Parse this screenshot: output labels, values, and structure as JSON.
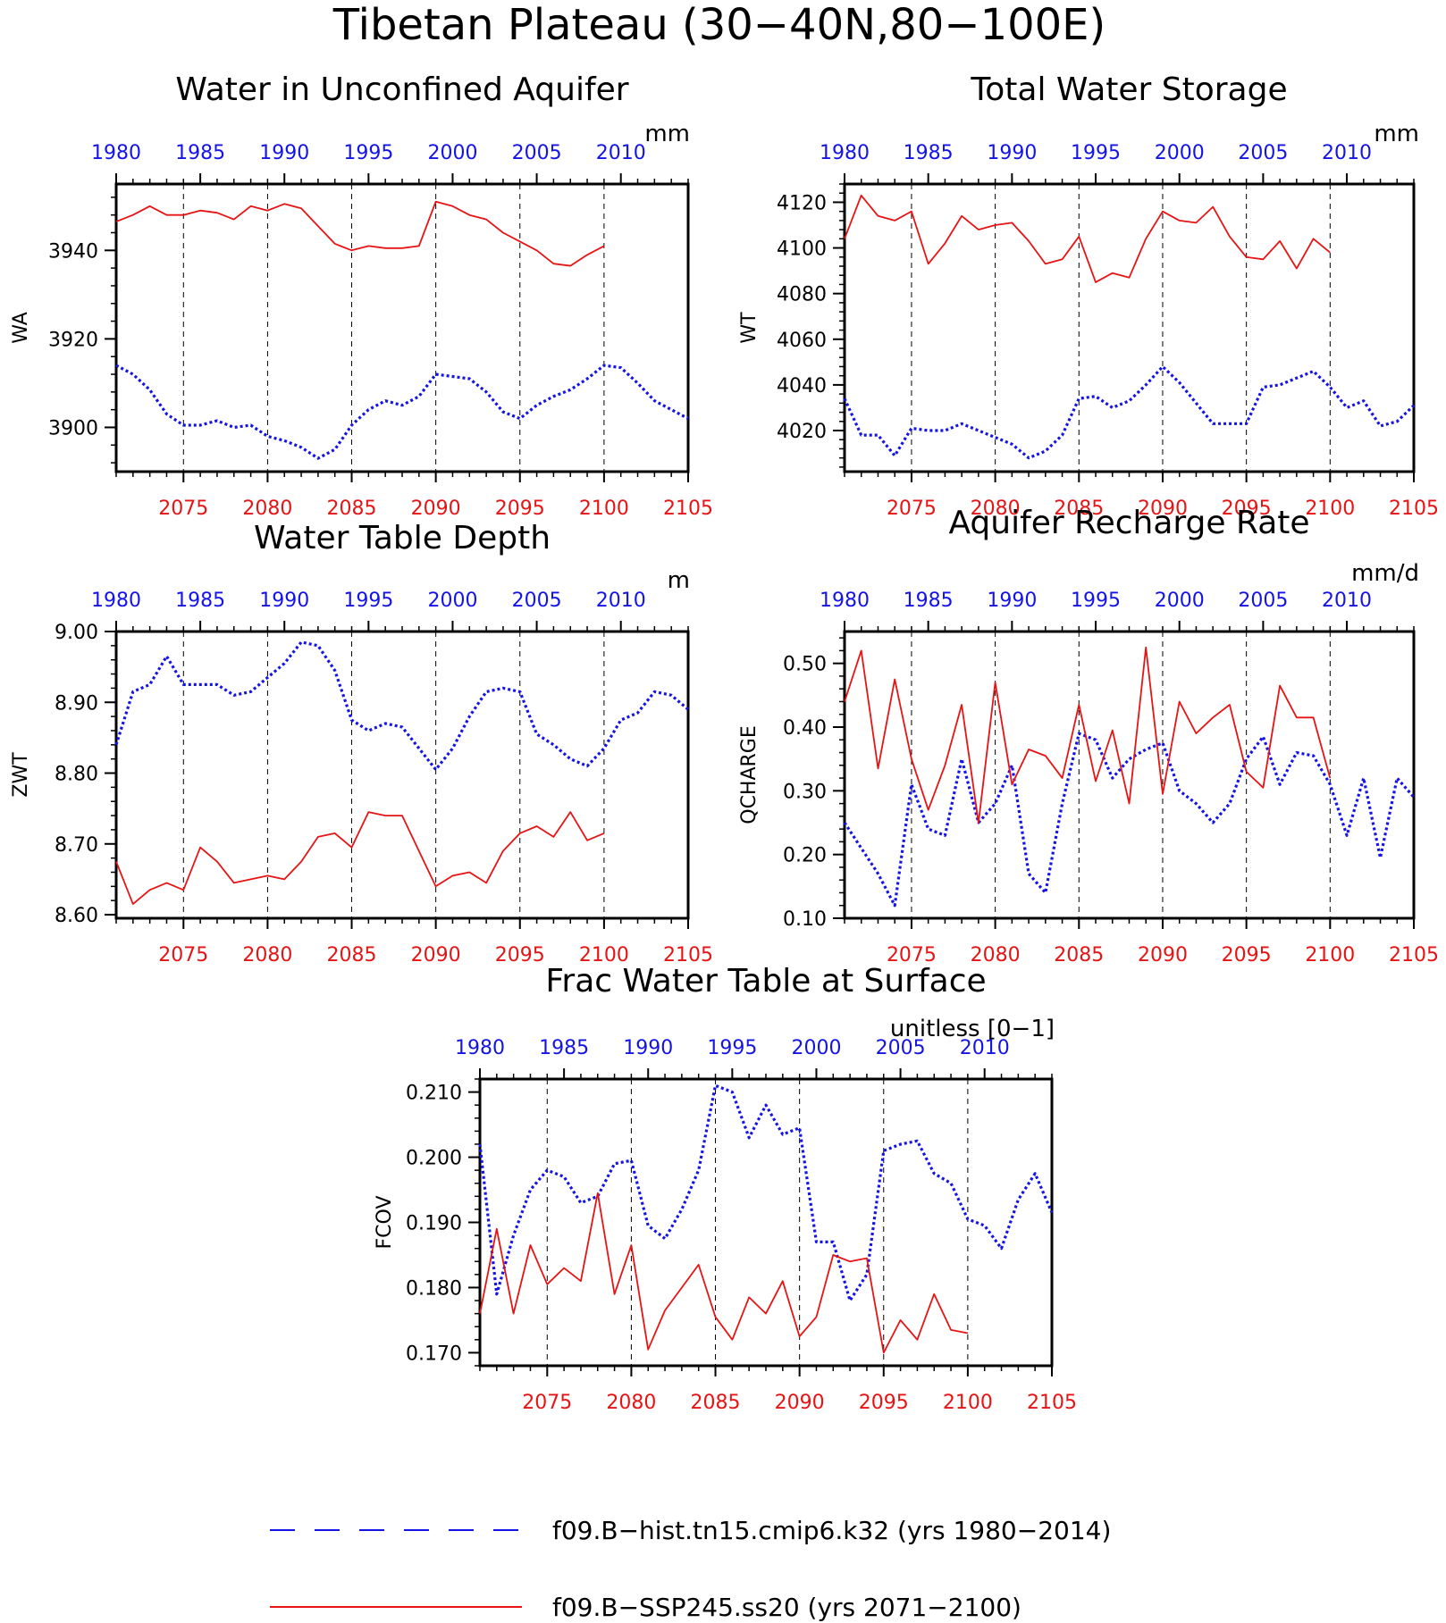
{
  "page_title": "Tibetan Plateau (30−40N,80−100E)",
  "colors": {
    "hist": "#1414e6",
    "ssp": "#e61414",
    "axis": "#000000"
  },
  "axes": {
    "top_ticks": [
      1980,
      1985,
      1990,
      1995,
      2000,
      2005,
      2010
    ],
    "bottom_ticks": [
      2075,
      2080,
      2085,
      2090,
      2095,
      2100,
      2105
    ],
    "top_range": [
      1980,
      2014
    ],
    "bottom_range": [
      2071,
      2105
    ]
  },
  "legend": [
    {
      "label": "f09.B−hist.tn15.cmip6.k32 (yrs 1980−2014)",
      "style": "dashed",
      "color": "#1414e6"
    },
    {
      "label": "f09.B−SSP245.ss20 (yrs 2071−2100)",
      "style": "solid",
      "color": "#e61414"
    }
  ],
  "chart_data": [
    {
      "type": "line",
      "title": "Water in Unconfined Aquifer",
      "ylabel": "WA",
      "units": "mm",
      "ylim": [
        3890,
        3955
      ],
      "yticks": [
        "3900",
        "3920",
        "3940"
      ],
      "ytick_values": [
        3900,
        3920,
        3940
      ],
      "series": [
        {
          "name": "f09.B−hist.tn15.cmip6.k32 (yrs 1980−2014)",
          "x_start": 1980,
          "values": [
            3914,
            3912,
            3908.5,
            3903,
            3900.5,
            3900.5,
            3901.5,
            3900,
            3900.5,
            3898,
            3897,
            3895.5,
            3893,
            3895,
            3900.5,
            3904,
            3906,
            3905,
            3907,
            3912,
            3911.5,
            3911,
            3908,
            3903.5,
            3902,
            3905,
            3907,
            3908.5,
            3911,
            3914,
            3913.5,
            3910,
            3906,
            3904,
            3902
          ]
        },
        {
          "name": "f09.B−SSP245.ss20 (yrs 2071−2100)",
          "x_start": 2071,
          "values": [
            3946.5,
            3948,
            3950,
            3948,
            3948,
            3949,
            3948.5,
            3947,
            3950,
            3949,
            3950.5,
            3949.5,
            3945.5,
            3941.5,
            3940,
            3941,
            3940.5,
            3940.5,
            3941,
            3951,
            3950,
            3948,
            3947,
            3944,
            3942,
            3940,
            3937,
            3936.5,
            3939,
            3941
          ]
        }
      ]
    },
    {
      "type": "line",
      "title": "Total Water Storage",
      "ylabel": "WT",
      "units": "mm",
      "ylim": [
        4002,
        4128
      ],
      "yticks": [
        "4020",
        "4040",
        "4060",
        "4080",
        "4100",
        "4120"
      ],
      "ytick_values": [
        4020,
        4040,
        4060,
        4080,
        4100,
        4120
      ],
      "series": [
        {
          "name": "f09.B−hist.tn15.cmip6.k32 (yrs 1980−2014)",
          "x_start": 1980,
          "values": [
            4034,
            4018,
            4018,
            4009,
            4021,
            4020,
            4020,
            4023,
            4020,
            4017,
            4014,
            4008,
            4011,
            4018,
            4034,
            4035,
            4030,
            4033,
            4040,
            4048,
            4041,
            4032,
            4023,
            4023,
            4023,
            4039,
            4040,
            4043,
            4046,
            4039,
            4030,
            4033,
            4022,
            4024,
            4031
          ]
        },
        {
          "name": "f09.B−SSP245.ss20 (yrs 2071−2100)",
          "x_start": 2071,
          "values": [
            4104,
            4123,
            4114,
            4112,
            4116,
            4093,
            4102,
            4114,
            4108,
            4110,
            4111,
            4103,
            4093,
            4095,
            4105,
            4085,
            4089,
            4087,
            4104,
            4116,
            4112,
            4111,
            4118,
            4105,
            4096,
            4095,
            4103,
            4091,
            4104,
            4098
          ]
        }
      ]
    },
    {
      "type": "line",
      "title": "Water Table Depth",
      "ylabel": "ZWT",
      "units": "m",
      "ylim": [
        8.595,
        9.0
      ],
      "yticks": [
        "8.60",
        "8.70",
        "8.80",
        "8.90",
        "9.00"
      ],
      "ytick_values": [
        8.6,
        8.7,
        8.8,
        8.9,
        9.0
      ],
      "series": [
        {
          "name": "f09.B−hist.tn15.cmip6.k32 (yrs 1980−2014)",
          "x_start": 1980,
          "values": [
            8.84,
            8.915,
            8.925,
            8.965,
            8.925,
            8.925,
            8.925,
            8.91,
            8.915,
            8.935,
            8.955,
            8.985,
            8.98,
            8.945,
            8.875,
            8.86,
            8.87,
            8.865,
            8.835,
            8.805,
            8.835,
            8.88,
            8.915,
            8.92,
            8.915,
            8.855,
            8.84,
            8.82,
            8.81,
            8.835,
            8.875,
            8.885,
            8.915,
            8.91,
            8.89
          ]
        },
        {
          "name": "f09.B−SSP245.ss20 (yrs 2071−2100)",
          "x_start": 2071,
          "values": [
            8.675,
            8.615,
            8.635,
            8.645,
            8.635,
            8.695,
            8.675,
            8.645,
            8.65,
            8.655,
            8.65,
            8.675,
            8.71,
            8.715,
            8.695,
            8.745,
            8.74,
            8.74,
            8.69,
            8.64,
            8.655,
            8.66,
            8.645,
            8.69,
            8.715,
            8.725,
            8.71,
            8.745,
            8.705,
            8.715
          ]
        }
      ]
    },
    {
      "type": "line",
      "title": "Aquifer Recharge Rate",
      "ylabel": "QCHARGE",
      "units": "mm/d",
      "ylim": [
        0.1,
        0.55
      ],
      "yticks": [
        "0.10",
        "0.20",
        "0.30",
        "0.40",
        "0.50"
      ],
      "ytick_values": [
        0.1,
        0.2,
        0.3,
        0.4,
        0.5
      ],
      "series": [
        {
          "name": "f09.B−hist.tn15.cmip6.k32 (yrs 1980−2014)",
          "x_start": 1980,
          "values": [
            0.25,
            0.21,
            0.17,
            0.12,
            0.31,
            0.24,
            0.23,
            0.35,
            0.25,
            0.28,
            0.34,
            0.17,
            0.14,
            0.28,
            0.39,
            0.38,
            0.32,
            0.35,
            0.365,
            0.375,
            0.3,
            0.28,
            0.25,
            0.28,
            0.35,
            0.385,
            0.31,
            0.36,
            0.355,
            0.31,
            0.23,
            0.32,
            0.195,
            0.32,
            0.29
          ]
        },
        {
          "name": "f09.B−SSP245.ss20 (yrs 2071−2100)",
          "x_start": 2071,
          "values": [
            0.44,
            0.52,
            0.335,
            0.475,
            0.35,
            0.27,
            0.34,
            0.435,
            0.25,
            0.47,
            0.31,
            0.365,
            0.355,
            0.32,
            0.435,
            0.315,
            0.395,
            0.28,
            0.525,
            0.295,
            0.44,
            0.39,
            0.415,
            0.435,
            0.33,
            0.305,
            0.465,
            0.415,
            0.415,
            0.32
          ]
        }
      ]
    },
    {
      "type": "line",
      "title": "Frac Water Table at Surface",
      "ylabel": "FCOV",
      "units": "unitless [0−1]",
      "ylim": [
        0.168,
        0.212
      ],
      "yticks": [
        "0.170",
        "0.180",
        "0.190",
        "0.200",
        "0.210"
      ],
      "ytick_values": [
        0.17,
        0.18,
        0.19,
        0.2,
        0.21
      ],
      "series": [
        {
          "name": "f09.B−hist.tn15.cmip6.k32 (yrs 1980−2014)",
          "x_start": 1980,
          "values": [
            0.202,
            0.179,
            0.188,
            0.195,
            0.198,
            0.197,
            0.193,
            0.194,
            0.199,
            0.1995,
            0.1895,
            0.1875,
            0.192,
            0.198,
            0.211,
            0.21,
            0.203,
            0.208,
            0.2035,
            0.2045,
            0.187,
            0.187,
            0.178,
            0.182,
            0.201,
            0.202,
            0.2025,
            0.1975,
            0.196,
            0.1905,
            0.1895,
            0.186,
            0.1935,
            0.1975,
            0.1915
          ]
        },
        {
          "name": "f09.B−SSP245.ss20 (yrs 2071−2100)",
          "x_start": 2071,
          "values": [
            0.176,
            0.189,
            0.176,
            0.1865,
            0.1805,
            0.183,
            0.181,
            0.1945,
            0.179,
            0.1865,
            0.1705,
            0.1765,
            0.18,
            0.1835,
            0.1755,
            0.172,
            0.1785,
            0.176,
            0.181,
            0.1725,
            0.1755,
            0.185,
            0.184,
            0.1845,
            0.17,
            0.175,
            0.172,
            0.179,
            0.1735,
            0.173
          ]
        }
      ]
    }
  ]
}
